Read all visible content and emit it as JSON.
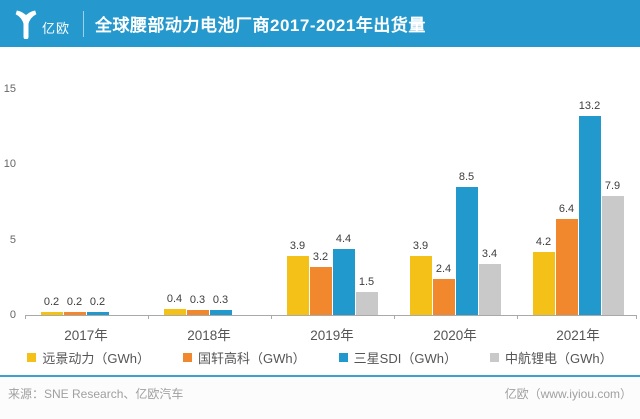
{
  "header": {
    "brand": "亿欧",
    "title": "全球腰部动力电池厂商2017-2021年出货量",
    "bg_color": "#2599CE"
  },
  "chart_data": {
    "type": "bar",
    "title": "全球腰部动力电池厂商2017-2021年出货量",
    "categories": [
      "2017年",
      "2018年",
      "2019年",
      "2020年",
      "2021年"
    ],
    "series": [
      {
        "name": "远景动力（GWh）",
        "color": "#F3C117",
        "values": [
          0.2,
          0.4,
          3.9,
          3.9,
          4.2
        ]
      },
      {
        "name": "国轩高科（GWh）",
        "color": "#F2882D",
        "values": [
          0.2,
          0.3,
          3.2,
          2.4,
          6.4
        ]
      },
      {
        "name": "三星SDI（GWh）",
        "color": "#2199CD",
        "values": [
          0.2,
          0.3,
          4.4,
          8.5,
          13.2
        ]
      },
      {
        "name": "中航锂电（GWh）",
        "color": "#C9C9C9",
        "values": [
          null,
          null,
          1.5,
          3.4,
          7.9
        ]
      }
    ],
    "ylabel": "",
    "xlabel": "",
    "ylim": [
      0,
      15
    ],
    "yticks": [
      0,
      5,
      10,
      15
    ],
    "grid": false,
    "legend_position": "bottom",
    "value_labels": true
  },
  "footer": {
    "source": "来源：SNE Research、亿欧汽车",
    "site": "亿欧（www.iyiou.com）"
  }
}
